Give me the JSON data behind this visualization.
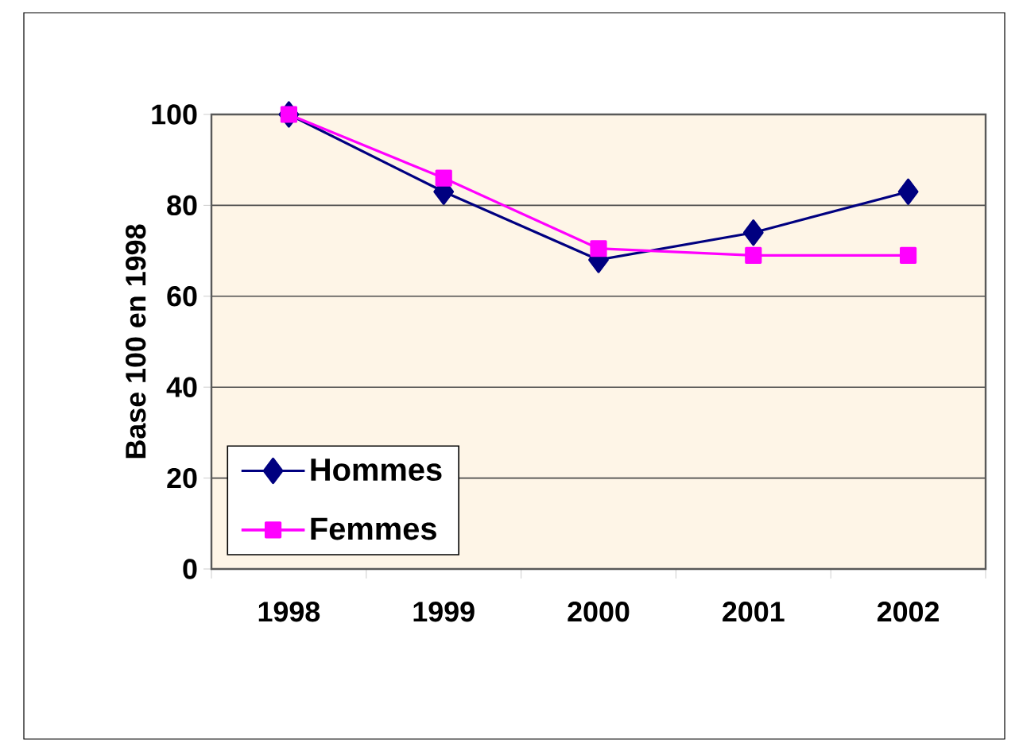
{
  "chart_data": {
    "type": "line",
    "ylabel": "Base 100 en 1998",
    "categories": [
      "1998",
      "1999",
      "2000",
      "2001",
      "2002"
    ],
    "series": [
      {
        "name": "Hommes",
        "color": "#000080",
        "marker": "diamond",
        "values": [
          100,
          83,
          68,
          74,
          83
        ]
      },
      {
        "name": "Femmes",
        "color": "#ff00ff",
        "marker": "square",
        "values": [
          100,
          86,
          70.5,
          69,
          69
        ]
      }
    ],
    "ylim": [
      0,
      100
    ],
    "yticks": [
      0,
      20,
      40,
      60,
      80,
      100
    ],
    "grid": "y",
    "legend": "bottom left",
    "line_style": "solid"
  }
}
